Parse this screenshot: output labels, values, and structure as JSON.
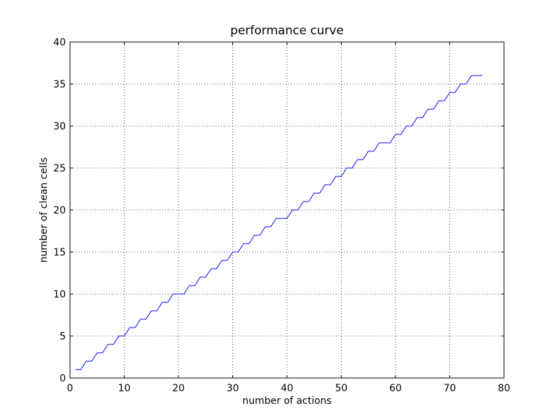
{
  "chart_data": {
    "type": "line",
    "title": "performance curve",
    "xlabel": "number of actions",
    "ylabel": "number of clean cells",
    "xlim": [
      0,
      80
    ],
    "ylim": [
      0,
      40
    ],
    "xticks": [
      0,
      10,
      20,
      30,
      40,
      50,
      60,
      70,
      80
    ],
    "yticks": [
      0,
      5,
      10,
      15,
      20,
      25,
      30,
      35,
      40
    ],
    "grid": true,
    "series": [
      {
        "color": "#0000ff",
        "x": [
          1,
          2,
          3,
          4,
          5,
          6,
          7,
          8,
          9,
          10,
          11,
          12,
          13,
          14,
          15,
          16,
          17,
          18,
          19,
          20,
          21,
          22,
          23,
          24,
          25,
          26,
          27,
          28,
          29,
          30,
          31,
          32,
          33,
          34,
          35,
          36,
          37,
          38,
          39,
          40,
          41,
          42,
          43,
          44,
          45,
          46,
          47,
          48,
          49,
          50,
          51,
          52,
          53,
          54,
          55,
          56,
          57,
          58,
          59,
          60,
          61,
          62,
          63,
          64,
          65,
          66,
          67,
          68,
          69,
          70,
          71,
          72,
          73,
          74,
          75,
          76
        ],
        "y": [
          1,
          1,
          2,
          2,
          3,
          3,
          4,
          4,
          5,
          5,
          6,
          6,
          7,
          7,
          8,
          8,
          9,
          9,
          10,
          10,
          10,
          11,
          11,
          12,
          12,
          13,
          13,
          14,
          14,
          15,
          15,
          16,
          16,
          17,
          17,
          18,
          18,
          19,
          19,
          19,
          20,
          20,
          21,
          21,
          22,
          22,
          23,
          23,
          24,
          24,
          25,
          25,
          26,
          26,
          27,
          27,
          28,
          28,
          28,
          29,
          29,
          30,
          30,
          31,
          31,
          32,
          32,
          33,
          33,
          34,
          34,
          35,
          35,
          36,
          36,
          36
        ]
      }
    ]
  }
}
